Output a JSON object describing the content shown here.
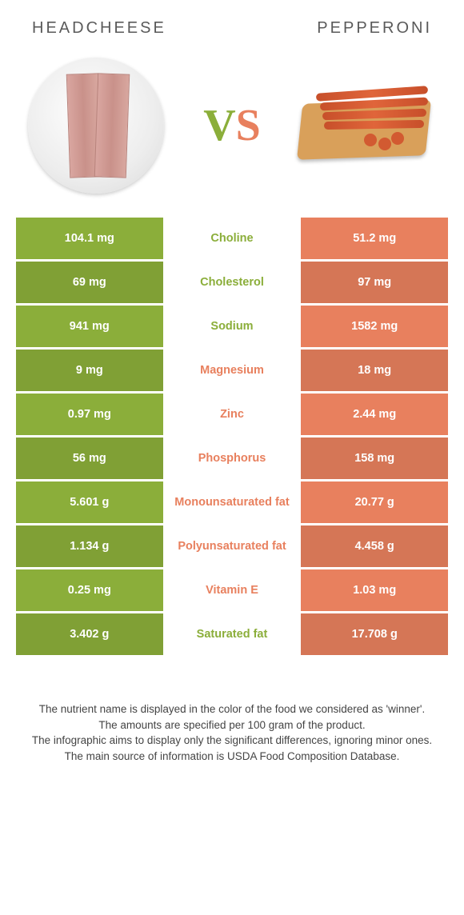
{
  "colors": {
    "left": "#8bae3a",
    "right": "#e8805e",
    "row_alt_darken": 0.08,
    "text_light": "#ffffff"
  },
  "header": {
    "left_title": "Headcheese",
    "right_title": "Pepperoni",
    "vs_text": "VS"
  },
  "rows": [
    {
      "left": "104.1 mg",
      "label": "Choline",
      "right": "51.2 mg",
      "winner": "left"
    },
    {
      "left": "69 mg",
      "label": "Cholesterol",
      "right": "97 mg",
      "winner": "left"
    },
    {
      "left": "941 mg",
      "label": "Sodium",
      "right": "1582 mg",
      "winner": "left"
    },
    {
      "left": "9 mg",
      "label": "Magnesium",
      "right": "18 mg",
      "winner": "right"
    },
    {
      "left": "0.97 mg",
      "label": "Zinc",
      "right": "2.44 mg",
      "winner": "right"
    },
    {
      "left": "56 mg",
      "label": "Phosphorus",
      "right": "158 mg",
      "winner": "right"
    },
    {
      "left": "5.601 g",
      "label": "Monounsaturated fat",
      "right": "20.77 g",
      "winner": "right"
    },
    {
      "left": "1.134 g",
      "label": "Polyunsaturated fat",
      "right": "4.458 g",
      "winner": "right"
    },
    {
      "left": "0.25 mg",
      "label": "Vitamin E",
      "right": "1.03 mg",
      "winner": "right"
    },
    {
      "left": "3.402 g",
      "label": "Saturated fat",
      "right": "17.708 g",
      "winner": "left"
    }
  ],
  "footer": {
    "line1": "The nutrient name is displayed in the color of the food we considered as 'winner'.",
    "line2": "The amounts are specified per 100 gram of the product.",
    "line3": "The infographic aims to display only the significant differences, ignoring minor ones.",
    "line4": "The main source of information is USDA Food Composition Database."
  }
}
